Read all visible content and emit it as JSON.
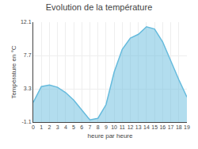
{
  "chart_data": {
    "type": "area",
    "title": "Evolution de la température",
    "xlabel": "heure par heure",
    "ylabel": "Température en °C",
    "x": [
      0,
      1,
      2,
      3,
      4,
      5,
      6,
      7,
      8,
      9,
      10,
      11,
      12,
      13,
      14,
      15,
      16,
      17,
      18,
      19
    ],
    "values": [
      1.5,
      3.6,
      3.8,
      3.5,
      2.8,
      1.8,
      0.5,
      -0.8,
      -0.6,
      1.2,
      5.5,
      8.5,
      10.0,
      10.5,
      11.5,
      11.2,
      9.5,
      7.0,
      4.5,
      2.2
    ],
    "color": "#66bbdd",
    "xlim": [
      0,
      19
    ],
    "xticks": [
      0,
      1,
      2,
      3,
      4,
      5,
      6,
      7,
      8,
      9,
      10,
      11,
      12,
      13,
      14,
      15,
      16,
      17,
      18,
      19
    ],
    "ylim": [
      -1.1,
      12.1
    ],
    "yticks": [
      -1.1,
      3.3,
      7.7,
      12.1
    ],
    "grid": true
  }
}
